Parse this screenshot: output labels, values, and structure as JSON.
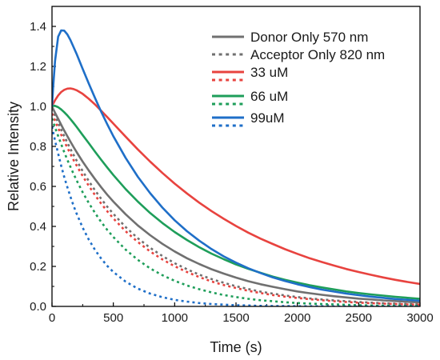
{
  "chart_data": {
    "type": "line",
    "xlabel": "Time (s)",
    "ylabel": "Relative Intensity",
    "xlim": [
      0,
      3000
    ],
    "ylim": [
      0,
      1.5
    ],
    "x_ticks": [
      0,
      500,
      1000,
      1500,
      2000,
      2500,
      3000
    ],
    "y_ticks": [
      0.0,
      0.2,
      0.4,
      0.6,
      0.8,
      1.0,
      1.2,
      1.4
    ],
    "grid": false,
    "legend_position": "top-right",
    "x": [
      0,
      10,
      25,
      50,
      75,
      100,
      125,
      150,
      175,
      200,
      250,
      300,
      350,
      400,
      450,
      500,
      600,
      700,
      800,
      900,
      1000,
      1100,
      1200,
      1300,
      1400,
      1500,
      1600,
      1700,
      1800,
      1900,
      2000,
      2100,
      2200,
      2300,
      2400,
      2500,
      2600,
      2700,
      2800,
      2900,
      3000
    ],
    "series": [
      {
        "name": "Donor Only 570 nm",
        "color": "#707070",
        "dash": false,
        "values": [
          1.0,
          0.987,
          0.968,
          0.938,
          0.908,
          0.879,
          0.851,
          0.824,
          0.798,
          0.772,
          0.724,
          0.679,
          0.637,
          0.597,
          0.559,
          0.524,
          0.461,
          0.405,
          0.356,
          0.313,
          0.275,
          0.241,
          0.212,
          0.186,
          0.164,
          0.144,
          0.126,
          0.111,
          0.098,
          0.086,
          0.075,
          0.066,
          0.058,
          0.051,
          0.045,
          0.039,
          0.035,
          0.03,
          0.027,
          0.023,
          0.021
        ]
      },
      {
        "name": "Acceptor Only 820 nm",
        "color": "#707070",
        "dash": true,
        "values": [
          0.99,
          0.975,
          0.954,
          0.918,
          0.884,
          0.851,
          0.819,
          0.788,
          0.759,
          0.73,
          0.677,
          0.627,
          0.581,
          0.539,
          0.499,
          0.463,
          0.397,
          0.341,
          0.293,
          0.252,
          0.216,
          0.186,
          0.159,
          0.137,
          0.118,
          0.101,
          0.087,
          0.074,
          0.064,
          0.055,
          0.047,
          0.04,
          0.035,
          0.03,
          0.026,
          0.022,
          0.019,
          0.016,
          0.014,
          0.012,
          0.01
        ]
      },
      {
        "name": "33 uM",
        "color": "#e8433f",
        "dash": false,
        "values": [
          1.0,
          1.013,
          1.031,
          1.055,
          1.072,
          1.083,
          1.089,
          1.09,
          1.087,
          1.081,
          1.063,
          1.038,
          1.01,
          0.979,
          0.947,
          0.914,
          0.849,
          0.785,
          0.724,
          0.667,
          0.614,
          0.565,
          0.519,
          0.477,
          0.438,
          0.402,
          0.369,
          0.339,
          0.312,
          0.286,
          0.263,
          0.241,
          0.222,
          0.204,
          0.187,
          0.172,
          0.158,
          0.145,
          0.133,
          0.122,
          0.112
        ]
      },
      {
        "name": "66 uM",
        "color": "#1e9e5a",
        "dash": false,
        "values": [
          1.0,
          1.003,
          1.003,
          0.996,
          0.985,
          0.971,
          0.955,
          0.937,
          0.918,
          0.898,
          0.857,
          0.816,
          0.774,
          0.734,
          0.695,
          0.657,
          0.587,
          0.524,
          0.467,
          0.417,
          0.372,
          0.332,
          0.296,
          0.264,
          0.236,
          0.21,
          0.188,
          0.168,
          0.149,
          0.133,
          0.119,
          0.106,
          0.095,
          0.085,
          0.075,
          0.067,
          0.06,
          0.054,
          0.048,
          0.043,
          0.038
        ]
      },
      {
        "name": "99uM",
        "color": "#1f6fc8",
        "dash": false,
        "values": [
          1.0,
          1.1,
          1.227,
          1.349,
          1.38,
          1.379,
          1.36,
          1.332,
          1.298,
          1.263,
          1.188,
          1.114,
          1.043,
          0.975,
          0.911,
          0.851,
          0.743,
          0.648,
          0.566,
          0.494,
          0.431,
          0.376,
          0.329,
          0.287,
          0.25,
          0.219,
          0.191,
          0.167,
          0.145,
          0.127,
          0.111,
          0.097,
          0.084,
          0.074,
          0.064,
          0.056,
          0.049,
          0.043,
          0.037,
          0.033,
          0.028
        ]
      },
      {
        "name": "",
        "color": "#e8433f",
        "dash": true,
        "values": [
          0.965,
          0.95,
          0.928,
          0.892,
          0.858,
          0.825,
          0.793,
          0.763,
          0.733,
          0.705,
          0.652,
          0.603,
          0.557,
          0.515,
          0.476,
          0.44,
          0.376,
          0.322,
          0.275,
          0.235,
          0.201,
          0.172,
          0.147,
          0.125,
          0.107,
          0.092,
          0.078,
          0.067,
          0.057,
          0.049,
          0.042,
          0.036,
          0.031,
          0.026,
          0.022,
          0.019,
          0.016,
          0.014,
          0.012,
          0.01,
          0.009
        ]
      },
      {
        "name": "",
        "color": "#1e9e5a",
        "dash": true,
        "values": [
          0.94,
          0.922,
          0.895,
          0.852,
          0.811,
          0.771,
          0.733,
          0.698,
          0.664,
          0.631,
          0.571,
          0.517,
          0.468,
          0.423,
          0.383,
          0.347,
          0.284,
          0.233,
          0.19,
          0.156,
          0.128,
          0.105,
          0.086,
          0.07,
          0.057,
          0.047,
          0.038,
          0.031,
          0.026,
          0.021,
          0.017,
          0.014,
          0.012,
          0.01,
          0.008,
          0.006,
          0.005,
          0.004,
          0.004,
          0.003,
          0.003
        ]
      },
      {
        "name": "",
        "color": "#1f6fc8",
        "dash": true,
        "values": [
          0.9,
          0.871,
          0.829,
          0.764,
          0.703,
          0.647,
          0.596,
          0.549,
          0.505,
          0.465,
          0.394,
          0.334,
          0.283,
          0.24,
          0.203,
          0.172,
          0.124,
          0.089,
          0.064,
          0.046,
          0.033,
          0.024,
          0.017,
          0.012,
          0.009,
          0.006,
          0.005,
          0.003,
          0.002,
          0.002,
          0.001,
          0.001,
          0.001,
          0.0,
          0.0,
          0.0,
          0.0,
          0.0,
          0.0,
          0.0,
          0.0
        ]
      }
    ]
  }
}
